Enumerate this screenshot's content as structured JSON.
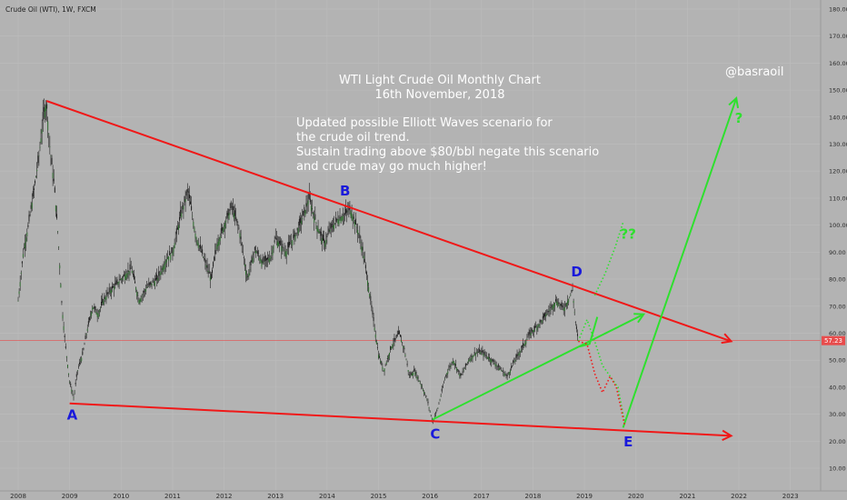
{
  "header": {
    "symbol_label": "Crude Oil (WTI), 1W, FXCM"
  },
  "chart_data": {
    "type": "line",
    "title": "WTI Light Crude Oil Monthly Chart",
    "subtitle": "16th November, 2018",
    "annotation_lines": [
      "Updated possible Elliott Waves scenario for",
      "the crude oil trend.",
      "Sustain trading above $80/bbl negate this scenario",
      "and crude may go much higher!"
    ],
    "author": "@basraoil",
    "x_ticks": [
      "2008",
      "2009",
      "2010",
      "2011",
      "2012",
      "2013",
      "2014",
      "2015",
      "2016",
      "2017",
      "2018",
      "2019",
      "2020",
      "2021",
      "2022",
      "2023"
    ],
    "y_ticks": [
      "10.00",
      "20.00",
      "30.00",
      "40.00",
      "50.00",
      "60.00",
      "70.00",
      "80.00",
      "90.00",
      "100.00",
      "110.00",
      "120.00",
      "130.00",
      "140.00",
      "150.00",
      "160.00",
      "170.00",
      "180.00"
    ],
    "xlim": [
      2008.0,
      2023.5
    ],
    "ylim": [
      5,
      183
    ],
    "last_price": "57.23",
    "price_series": [
      [
        2008.0,
        72
      ],
      [
        2008.1,
        90
      ],
      [
        2008.2,
        100
      ],
      [
        2008.3,
        112
      ],
      [
        2008.4,
        125
      ],
      [
        2008.5,
        142
      ],
      [
        2008.55,
        145
      ],
      [
        2008.62,
        128
      ],
      [
        2008.7,
        115
      ],
      [
        2008.78,
        95
      ],
      [
        2008.85,
        70
      ],
      [
        2008.92,
        55
      ],
      [
        2009.0,
        42
      ],
      [
        2009.08,
        36
      ],
      [
        2009.15,
        46
      ],
      [
        2009.25,
        52
      ],
      [
        2009.35,
        62
      ],
      [
        2009.45,
        70
      ],
      [
        2009.55,
        67
      ],
      [
        2009.65,
        72
      ],
      [
        2009.8,
        76
      ],
      [
        2010.0,
        80
      ],
      [
        2010.2,
        84
      ],
      [
        2010.35,
        72
      ],
      [
        2010.5,
        77
      ],
      [
        2010.7,
        80
      ],
      [
        2010.9,
        88
      ],
      [
        2011.0,
        90
      ],
      [
        2011.15,
        103
      ],
      [
        2011.3,
        113
      ],
      [
        2011.45,
        96
      ],
      [
        2011.6,
        88
      ],
      [
        2011.75,
        80
      ],
      [
        2011.85,
        92
      ],
      [
        2012.0,
        100
      ],
      [
        2012.15,
        107
      ],
      [
        2012.3,
        98
      ],
      [
        2012.45,
        80
      ],
      [
        2012.6,
        91
      ],
      [
        2012.75,
        86
      ],
      [
        2012.9,
        88
      ],
      [
        2013.0,
        95
      ],
      [
        2013.2,
        90
      ],
      [
        2013.4,
        97
      ],
      [
        2013.55,
        104
      ],
      [
        2013.65,
        110
      ],
      [
        2013.8,
        100
      ],
      [
        2013.95,
        93
      ],
      [
        2014.05,
        98
      ],
      [
        2014.2,
        102
      ],
      [
        2014.35,
        104
      ],
      [
        2014.45,
        106
      ],
      [
        2014.6,
        98
      ],
      [
        2014.7,
        90
      ],
      [
        2014.8,
        78
      ],
      [
        2014.9,
        65
      ],
      [
        2015.0,
        52
      ],
      [
        2015.1,
        46
      ],
      [
        2015.25,
        55
      ],
      [
        2015.4,
        60
      ],
      [
        2015.5,
        54
      ],
      [
        2015.6,
        44
      ],
      [
        2015.7,
        46
      ],
      [
        2015.85,
        40
      ],
      [
        2015.95,
        35
      ],
      [
        2016.05,
        27
      ],
      [
        2016.15,
        32
      ],
      [
        2016.3,
        44
      ],
      [
        2016.45,
        50
      ],
      [
        2016.6,
        44
      ],
      [
        2016.75,
        50
      ],
      [
        2016.9,
        53
      ],
      [
        2017.0,
        53
      ],
      [
        2017.2,
        50
      ],
      [
        2017.4,
        46
      ],
      [
        2017.5,
        44
      ],
      [
        2017.65,
        50
      ],
      [
        2017.8,
        55
      ],
      [
        2017.95,
        60
      ],
      [
        2018.1,
        63
      ],
      [
        2018.3,
        68
      ],
      [
        2018.45,
        72
      ],
      [
        2018.6,
        69
      ],
      [
        2018.7,
        73
      ],
      [
        2018.77,
        76
      ],
      [
        2018.82,
        65
      ],
      [
        2018.88,
        57
      ]
    ],
    "wave_labels": [
      {
        "label": "A",
        "x": 2009.05,
        "y": 28
      },
      {
        "label": "B",
        "x": 2014.35,
        "y": 111
      },
      {
        "label": "C",
        "x": 2016.1,
        "y": 21
      },
      {
        "label": "D",
        "x": 2018.85,
        "y": 81
      },
      {
        "label": "E",
        "x": 2019.85,
        "y": 18
      }
    ],
    "question_labels": [
      {
        "label": "??",
        "x": 2019.85,
        "y": 95
      },
      {
        "label": "?",
        "x": 2022.0,
        "y": 138
      }
    ],
    "trendlines": [
      {
        "color": "#f01818",
        "points": [
          [
            2008.55,
            146
          ],
          [
            2021.85,
            57
          ]
        ]
      },
      {
        "color": "#f01818",
        "points": [
          [
            2009.0,
            34
          ],
          [
            2021.85,
            22
          ]
        ]
      },
      {
        "color": "#2ee02e",
        "points": [
          [
            2016.05,
            28
          ],
          [
            2020.15,
            67
          ]
        ]
      },
      {
        "color": "#2ee02e",
        "points": [
          [
            2019.75,
            25
          ],
          [
            2021.95,
            147
          ]
        ]
      },
      {
        "color": "#2ee02e",
        "points": [
          [
            2018.9,
            55
          ],
          [
            2019.1,
            56
          ],
          [
            2019.25,
            66
          ]
        ]
      }
    ],
    "scenario_paths": [
      {
        "color": "#2ee02e",
        "points": [
          [
            2018.88,
            57
          ],
          [
            2019.05,
            65
          ],
          [
            2019.2,
            57
          ],
          [
            2019.35,
            48
          ],
          [
            2019.5,
            44
          ],
          [
            2019.65,
            40
          ],
          [
            2019.78,
            27
          ]
        ]
      },
      {
        "color": "#f01818",
        "points": [
          [
            2018.88,
            57
          ],
          [
            2019.05,
            56
          ],
          [
            2019.2,
            45
          ],
          [
            2019.35,
            38
          ],
          [
            2019.5,
            44
          ],
          [
            2019.62,
            40
          ],
          [
            2019.78,
            26
          ]
        ]
      },
      {
        "color": "#2ee02e",
        "points": [
          [
            2019.2,
            74
          ],
          [
            2019.4,
            82
          ],
          [
            2019.6,
            92
          ],
          [
            2019.75,
            101
          ]
        ]
      }
    ]
  }
}
